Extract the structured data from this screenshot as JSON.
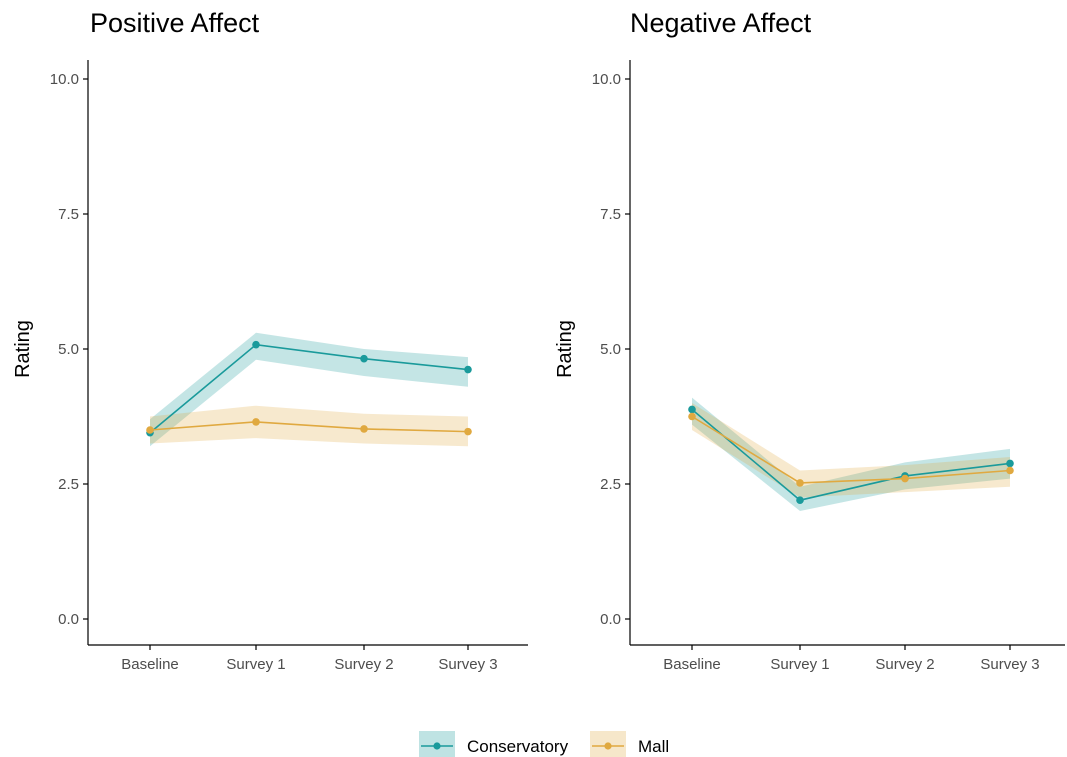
{
  "chart_data": [
    {
      "type": "line",
      "title": "Positive Affect",
      "xlabel": "",
      "ylabel": "Rating",
      "categories": [
        "Baseline",
        "Survey 1",
        "Survey 2",
        "Survey 3"
      ],
      "ylim": [
        0,
        10
      ],
      "yticks": [
        "0.0",
        "2.5",
        "5.0",
        "7.5",
        "10.0"
      ],
      "series": [
        {
          "name": "Conservatory",
          "color": "#1a9a9b",
          "values": [
            3.45,
            5.08,
            4.82,
            4.62
          ],
          "lower": [
            3.2,
            4.8,
            4.5,
            4.3
          ],
          "upper": [
            3.7,
            5.3,
            5.0,
            4.85
          ]
        },
        {
          "name": "Mall",
          "color": "#e0a940",
          "values": [
            3.5,
            3.65,
            3.52,
            3.47
          ],
          "lower": [
            3.25,
            3.35,
            3.25,
            3.2
          ],
          "upper": [
            3.75,
            3.95,
            3.8,
            3.75
          ]
        }
      ]
    },
    {
      "type": "line",
      "title": "Negative Affect",
      "xlabel": "",
      "ylabel": "Rating",
      "categories": [
        "Baseline",
        "Survey 1",
        "Survey 2",
        "Survey 3"
      ],
      "ylim": [
        0,
        10
      ],
      "yticks": [
        "0.0",
        "2.5",
        "5.0",
        "7.5",
        "10.0"
      ],
      "series": [
        {
          "name": "Conservatory",
          "color": "#1a9a9b",
          "values": [
            3.88,
            2.2,
            2.65,
            2.88
          ],
          "lower": [
            3.6,
            2.0,
            2.4,
            2.6
          ],
          "upper": [
            4.1,
            2.45,
            2.9,
            3.15
          ]
        },
        {
          "name": "Mall",
          "color": "#e0a940",
          "values": [
            3.75,
            2.52,
            2.6,
            2.75
          ],
          "lower": [
            3.5,
            2.25,
            2.35,
            2.45
          ],
          "upper": [
            4.0,
            2.75,
            2.85,
            3.0
          ]
        }
      ]
    }
  ],
  "legend": {
    "position": "bottom",
    "items": [
      {
        "label": "Conservatory",
        "color": "#1a9a9b"
      },
      {
        "label": "Mall",
        "color": "#e0a940"
      }
    ]
  }
}
